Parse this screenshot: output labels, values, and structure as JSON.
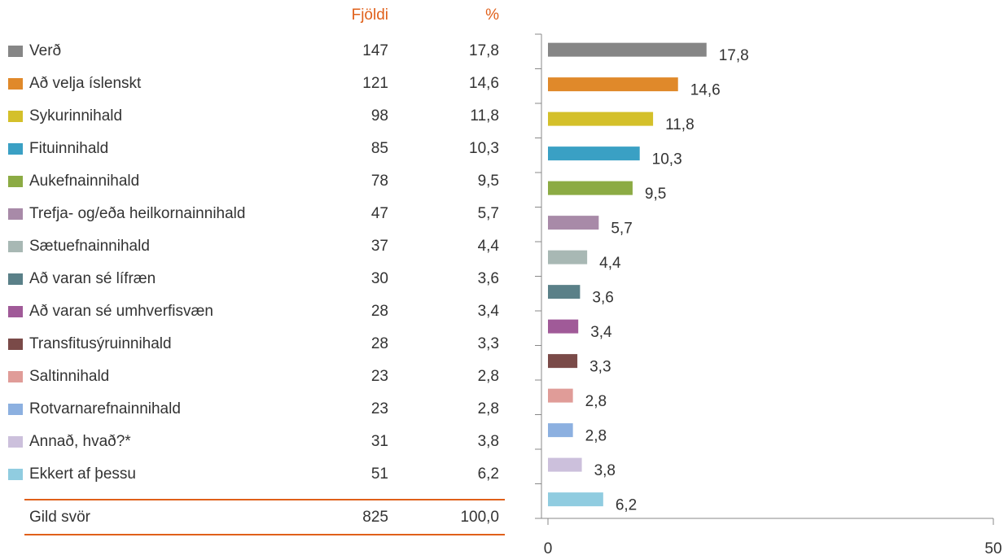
{
  "table": {
    "headers": [
      "Fjöldi",
      "%"
    ],
    "counts": [
      147,
      121,
      98,
      85,
      78,
      47,
      37,
      30,
      28,
      28,
      23,
      23,
      31,
      51
    ],
    "total": {
      "label": "Gild svör",
      "count": 825,
      "percent": "100,0"
    }
  },
  "chart_data": {
    "type": "bar",
    "orientation": "horizontal",
    "categories": [
      "Verð",
      "Að velja íslenskt",
      "Sykurinnihald",
      "Fituinnihald",
      "Aukefnainnihald",
      "Trefja- og/eða heilkornainnihald",
      "Sætuefnainnihald",
      "Að varan sé lífræn",
      "Að varan sé umhverfisvæn",
      "Transfitusýruinnihald",
      "Saltinnihald",
      "Rotvarnarefnainnihald",
      "Annað, hvað?*",
      "Ekkert af þessu"
    ],
    "values": [
      17.8,
      14.6,
      11.8,
      10.3,
      9.5,
      5.7,
      4.4,
      3.6,
      3.4,
      3.3,
      2.8,
      2.8,
      3.8,
      6.2
    ],
    "value_labels": [
      "17,8",
      "14,6",
      "11,8",
      "10,3",
      "9,5",
      "5,7",
      "4,4",
      "3,6",
      "3,4",
      "3,3",
      "2,8",
      "2,8",
      "3,8",
      "6,2"
    ],
    "colors": [
      "#868686",
      "#e0892a",
      "#d4c02a",
      "#3aa0c4",
      "#8cab44",
      "#a88aa8",
      "#a8b8b4",
      "#5a8088",
      "#a05a98",
      "#7a4a48",
      "#e09c98",
      "#8cb0e0",
      "#ccc0dc",
      "#90cce0"
    ],
    "xlim": [
      0,
      50
    ],
    "xticks": [
      0,
      50
    ]
  }
}
